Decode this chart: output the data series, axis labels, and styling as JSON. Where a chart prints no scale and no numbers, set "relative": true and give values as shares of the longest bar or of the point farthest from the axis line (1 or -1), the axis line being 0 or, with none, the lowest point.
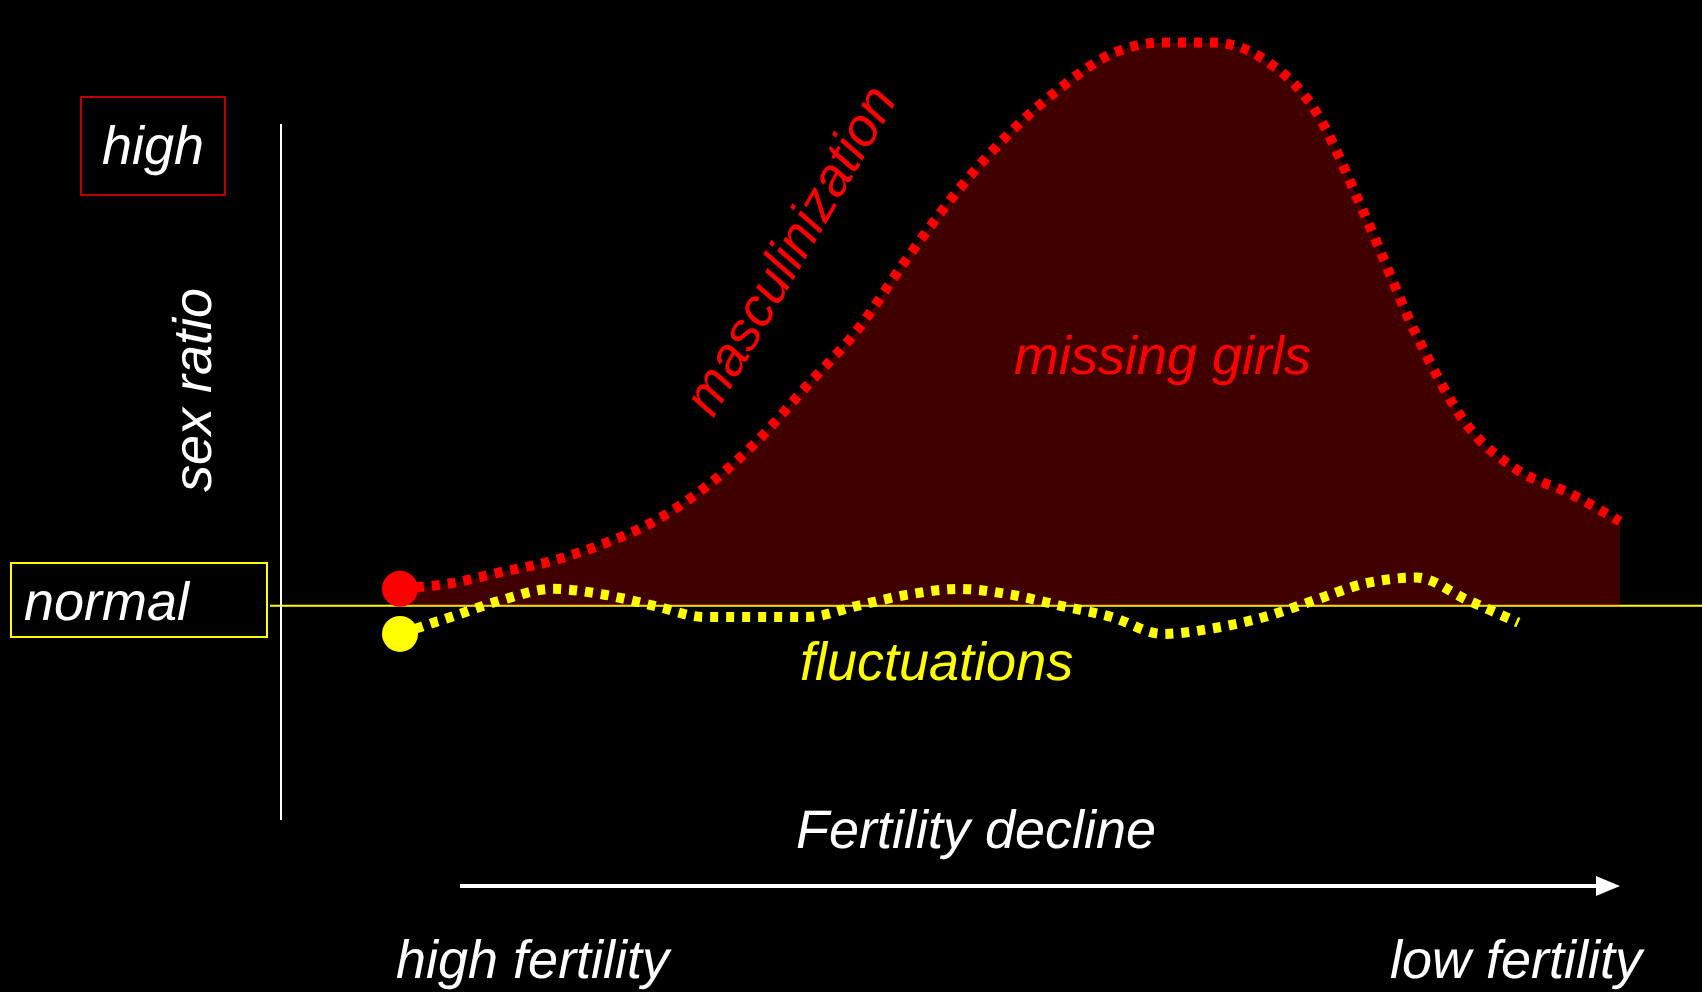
{
  "chart_data": {
    "type": "line",
    "relative": true,
    "ylabel": "sex ratio",
    "xlabel": "Fertility decline",
    "legend": false,
    "line_style": "dotted",
    "categories": [
      null,
      null,
      null,
      null,
      null,
      null,
      null,
      null,
      null,
      null,
      null,
      null,
      null,
      null,
      null,
      null,
      null,
      null,
      null,
      null,
      null,
      null,
      null,
      null,
      null
    ],
    "series": [
      {
        "name": "masculinization",
        "type": "area",
        "color": "#ff0000",
        "values": [
          0.03,
          0.04,
          0.06,
          0.08,
          0.11,
          0.15,
          0.21,
          0.29,
          0.39,
          0.49,
          0.62,
          0.74,
          0.84,
          0.92,
          0.98,
          1.0,
          1.0,
          0.97,
          0.88,
          0.69,
          0.48,
          0.32,
          0.24,
          0.2,
          0.15
        ]
      },
      {
        "name": "fluctuations",
        "color": "#ffff00",
        "values": [
          -0.05,
          -0.02,
          0.01,
          0.03,
          0.02,
          0,
          -0.02,
          -0.02,
          -0.02,
          0,
          0.02,
          0.03,
          0.02,
          0,
          -0.02,
          -0.05,
          -0.04,
          -0.02,
          0.01,
          0.04,
          0.05,
          0.01,
          -0.03,
          null,
          null
        ]
      }
    ],
    "ref_lines": [
      {
        "axis": "y",
        "value": 0,
        "label": "normal",
        "color": "#ffff00"
      }
    ],
    "annotations": [
      "high",
      "missing girls",
      "high fertility",
      "low fertility"
    ]
  }
}
